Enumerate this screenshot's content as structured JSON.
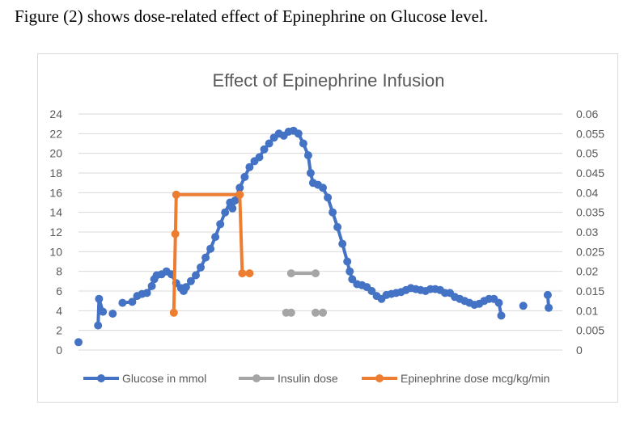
{
  "caption": "Figure (2) shows dose-related effect of Epinephrine on Glucose level.",
  "chart_data": {
    "type": "line",
    "title": "Effect of Epinephrine Infusion",
    "xlabel": "",
    "ylabel": "",
    "grid": true,
    "legend_position": "bottom",
    "y_left": {
      "ticks": [
        "0",
        "2",
        "4",
        "6",
        "8",
        "10",
        "12",
        "14",
        "16",
        "18",
        "20",
        "22",
        "24"
      ],
      "range": [
        0,
        24
      ]
    },
    "y_right": {
      "ticks": [
        "0",
        "0.005",
        "0.01",
        "0.015",
        "0.02",
        "0.025",
        "0.03",
        "0.035",
        "0.04",
        "0.045",
        "0.05",
        "0.055",
        "0.06"
      ],
      "range": [
        0,
        0.06
      ]
    },
    "series": [
      {
        "name": "Glucose in mmol",
        "axis": "left",
        "color": "#4472c4",
        "segments": [
          [
            [
              0,
              0.8
            ]
          ],
          [
            [
              4,
              2.5
            ],
            [
              4.2,
              5.2
            ],
            [
              5,
              3.9
            ]
          ],
          [
            [
              7,
              3.7
            ]
          ],
          [
            [
              9,
              4.8
            ],
            [
              11,
              4.9
            ],
            [
              12,
              5.5
            ],
            [
              13,
              5.7
            ],
            [
              14,
              5.8
            ],
            [
              15,
              6.5
            ],
            [
              15.5,
              7.2
            ],
            [
              16,
              7.6
            ],
            [
              17,
              7.7
            ],
            [
              18,
              8.0
            ],
            [
              19,
              7.7
            ],
            [
              20,
              6.8
            ],
            [
              21,
              6.3
            ],
            [
              21.5,
              6.0
            ],
            [
              22,
              6.4
            ],
            [
              23,
              7.0
            ],
            [
              24,
              7.6
            ],
            [
              25,
              8.4
            ],
            [
              26,
              9.4
            ],
            [
              27,
              10.3
            ],
            [
              28,
              11.5
            ],
            [
              29,
              12.8
            ],
            [
              30,
              14.0
            ],
            [
              31,
              15.0
            ],
            [
              31.5,
              14.4
            ],
            [
              32,
              15.2
            ],
            [
              33,
              16.5
            ],
            [
              34,
              17.6
            ],
            [
              35,
              18.6
            ],
            [
              36,
              19.2
            ],
            [
              37,
              19.6
            ],
            [
              38,
              20.4
            ],
            [
              39,
              21.0
            ],
            [
              40,
              21.6
            ],
            [
              41,
              22.0
            ],
            [
              42,
              21.8
            ],
            [
              43,
              22.2
            ],
            [
              44,
              22.3
            ],
            [
              45,
              22.0
            ],
            [
              46,
              21.0
            ],
            [
              47,
              19.8
            ],
            [
              47.5,
              18.0
            ],
            [
              48,
              17.0
            ],
            [
              49,
              16.8
            ],
            [
              50,
              16.5
            ],
            [
              51,
              15.5
            ],
            [
              52,
              14.0
            ],
            [
              53,
              12.5
            ],
            [
              54,
              10.8
            ],
            [
              55,
              9.0
            ],
            [
              55.5,
              8.0
            ],
            [
              56,
              7.2
            ],
            [
              57,
              6.7
            ],
            [
              58,
              6.6
            ],
            [
              59,
              6.4
            ],
            [
              60,
              6.0
            ],
            [
              61,
              5.5
            ],
            [
              62,
              5.2
            ],
            [
              63,
              5.6
            ],
            [
              64,
              5.7
            ],
            [
              65,
              5.8
            ],
            [
              66,
              5.9
            ],
            [
              67,
              6.1
            ],
            [
              68,
              6.3
            ],
            [
              69,
              6.2
            ],
            [
              70,
              6.1
            ],
            [
              71,
              6.0
            ],
            [
              72,
              6.2
            ],
            [
              73,
              6.2
            ],
            [
              74,
              6.1
            ],
            [
              75,
              5.8
            ],
            [
              76,
              5.8
            ],
            [
              77,
              5.4
            ],
            [
              78,
              5.2
            ],
            [
              79,
              5.0
            ],
            [
              80,
              4.8
            ],
            [
              81,
              4.6
            ],
            [
              82,
              4.7
            ],
            [
              83,
              5.0
            ],
            [
              84,
              5.2
            ],
            [
              85,
              5.2
            ],
            [
              86,
              4.8
            ],
            [
              86.5,
              3.5
            ]
          ],
          [
            [
              91,
              4.5
            ]
          ],
          [
            [
              96,
              5.6
            ],
            [
              96.2,
              4.3
            ]
          ]
        ]
      },
      {
        "name": "Insulin dose",
        "axis": "right",
        "color": "#a5a5a5",
        "segments": [
          [
            [
              42.5,
              0.0095
            ],
            [
              43.5,
              0.0095
            ]
          ],
          [
            [
              43.5,
              0.0195
            ],
            [
              48.5,
              0.0195
            ]
          ],
          [
            [
              48.5,
              0.0095
            ],
            [
              50,
              0.0095
            ]
          ]
        ]
      },
      {
        "name": "Epinephrine dose mcg/kg/min",
        "axis": "right",
        "color": "#ed7d31",
        "segments": [
          [
            [
              19.5,
              0.0095
            ],
            [
              20,
              0.0395
            ],
            [
              33,
              0.0395
            ],
            [
              33.5,
              0.0195
            ],
            [
              35,
              0.0195
            ]
          ],
          [
            [
              19.8,
              0.0295
            ]
          ]
        ]
      }
    ]
  }
}
